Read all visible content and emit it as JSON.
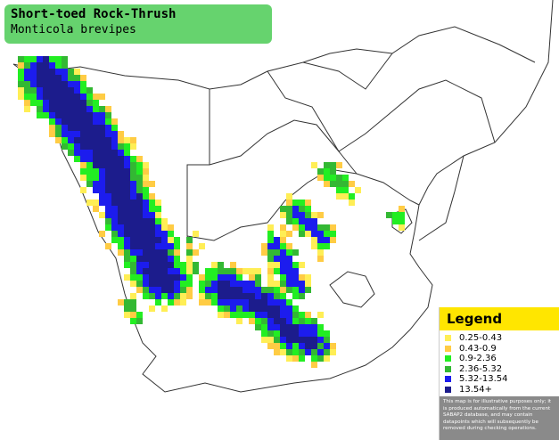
{
  "header": {
    "title": "Short-toed Rock-Thrush",
    "subtitle": "Monticola brevipes"
  },
  "legend": {
    "title": "Legend",
    "items": [
      {
        "label": "0.25-0.43",
        "color": "#ffee55"
      },
      {
        "label": "0.43-0.9",
        "color": "#ffcc44"
      },
      {
        "label": "0.9-2.36",
        "color": "#22ee22"
      },
      {
        "label": "2.36-5.32",
        "color": "#33b833"
      },
      {
        "label": "5.32-13.54",
        "color": "#1c1cee"
      },
      {
        "label": "13.54+",
        "color": "#1c1c8c"
      }
    ],
    "disclaimer": "This map is for illustrative purposes only; it is produced automatically from the current SABAP2 database, and may contain datapoints which will subsequently be removed during checking operations."
  }
}
